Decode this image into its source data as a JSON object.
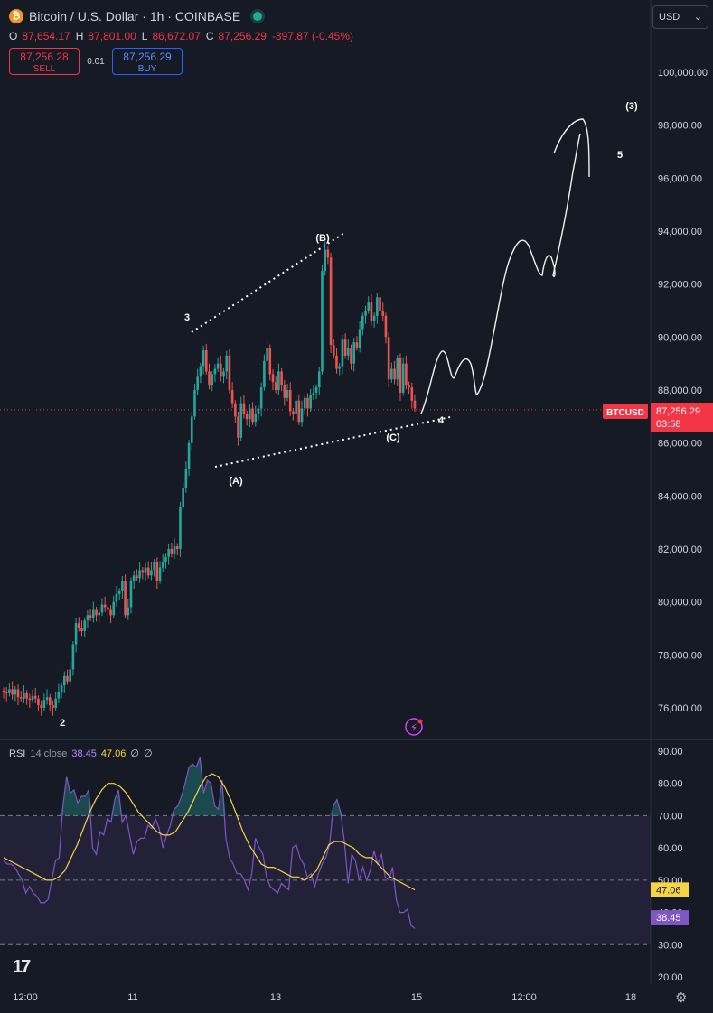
{
  "header": {
    "symbol": "Bitcoin / U.S. Dollar · 1h · COINBASE",
    "ohlc": {
      "o_label": "O",
      "o": "87,654.17",
      "h_label": "H",
      "h": "87,801.00",
      "l_label": "L",
      "l": "86,672.07",
      "c_label": "C",
      "c": "87,256.29",
      "change": "-397.87 (-0.45%)"
    },
    "sell_price": "87,256.28",
    "sell_label": "SELL",
    "buy_price": "87,256.29",
    "buy_label": "BUY",
    "spread": "0.01",
    "currency": "USD"
  },
  "price_tag": {
    "symbol": "BTCUSD",
    "price": "87,256.29",
    "countdown": "03:58"
  },
  "rsi_legend": {
    "name": "RSI",
    "params": "14 close",
    "rsi": "38.45",
    "ma": "47.06",
    "e1": "∅",
    "e2": "∅"
  },
  "colors": {
    "up": "#26a69a",
    "down": "#ef5350",
    "rsi": "#7e57c2",
    "rsi_ma": "#f5d547",
    "price_tag": "#f23645",
    "bg": "#161a25"
  },
  "icons": {
    "symbol": "bitcoin-icon",
    "live": "market-open-icon",
    "logo": "tradingview-logo-icon",
    "settings": "settings-icon",
    "flash": "lightning-icon"
  },
  "chart_data": [
    {
      "type": "candlestick",
      "title": "Bitcoin / U.S. Dollar · 1h · COINBASE",
      "ylim": [
        75000,
        101500
      ],
      "yticks": [
        "100,000.00",
        "98,000.00",
        "96,000.00",
        "94,000.00",
        "92,000.00",
        "90,000.00",
        "88,000.00",
        "86,000.00",
        "84,000.00",
        "82,000.00",
        "80,000.00",
        "78,000.00",
        "76,000.00"
      ],
      "xticks": [
        "12:00",
        "11",
        "13",
        "15",
        "12:00",
        "18"
      ],
      "last_price": 87256.29,
      "series": [
        {
          "name": "close",
          "values": [
            76600,
            76550,
            76700,
            76500,
            76700,
            76400,
            76350,
            76550,
            76350,
            76300,
            76450,
            76350,
            76100,
            76000,
            76300,
            76400,
            76100,
            76000,
            76350,
            76600,
            76850,
            77200,
            77000,
            77450,
            78400,
            79200,
            79000,
            78900,
            79300,
            79500,
            79400,
            79700,
            79500,
            79600,
            79900,
            79800,
            79700,
            79500,
            80000,
            80300,
            80400,
            80800,
            79500,
            79800,
            80800,
            81000,
            80900,
            81200,
            81100,
            81300,
            81000,
            81200,
            81500,
            80800,
            81300,
            81500,
            81700,
            82000,
            81800,
            82100,
            82000,
            83600,
            84300,
            85000,
            86000,
            87000,
            88000,
            88500,
            88900,
            89500,
            88700,
            88200,
            88600,
            88800,
            89000,
            88500,
            88700,
            89300,
            88000,
            87500,
            87000,
            86200,
            87500,
            87100,
            86900,
            87300,
            86800,
            87100,
            87300,
            88100,
            89100,
            89600,
            88600,
            88300,
            88000,
            88700,
            88200,
            87700,
            88000,
            87200,
            87100,
            87600,
            86800,
            87300,
            87700,
            87300,
            87800,
            87900,
            88100,
            88700,
            92500,
            93300,
            93000,
            89700,
            89300,
            88800,
            88900,
            89900,
            89300,
            89600,
            89000,
            89800,
            89600,
            90300,
            90800,
            91000,
            91300,
            90600,
            90800,
            91500,
            91000,
            90800,
            90000,
            88400,
            88800,
            88400,
            89200,
            87900,
            89000,
            88200,
            88100,
            87600,
            87300
          ]
        }
      ],
      "annotations": [
        {
          "label": "(B)",
          "x": "13-16:00",
          "y": 93900
        },
        {
          "label": "3",
          "x": "11-15:00",
          "y": 90700
        },
        {
          "label": "(A)",
          "x": "12-10:00",
          "y": 84600
        },
        {
          "label": "(C)",
          "x": "14-20:00",
          "y": 86250
        },
        {
          "label": "4",
          "x": "15-02:00",
          "y": 87000
        },
        {
          "label": "(3)",
          "x": "16-22:00",
          "y": 98700
        },
        {
          "label": "5",
          "x": "16-20:00",
          "y": 96900
        },
        {
          "label": "2",
          "x": "10-09:00",
          "y": 75400
        }
      ]
    },
    {
      "type": "line",
      "title": "RSI 14 close",
      "ylim": [
        20,
        90
      ],
      "yticks": [
        "90.00",
        "80.00",
        "70.00",
        "60.00",
        "50.00",
        "40.00",
        "30.00",
        "20.00"
      ],
      "bands": [
        30,
        50,
        70
      ],
      "series": [
        {
          "name": "RSI",
          "values": [
            56,
            55,
            55,
            54,
            52,
            50,
            46,
            48,
            46,
            45,
            43,
            43,
            44,
            50,
            56,
            57,
            73,
            82,
            77,
            78,
            74,
            76,
            76,
            78,
            60,
            58,
            65,
            64,
            69,
            68,
            75,
            78,
            68,
            70,
            64,
            58,
            62,
            63,
            63,
            67,
            66,
            69,
            66,
            60,
            64,
            67,
            72,
            73,
            76,
            80,
            85,
            86,
            85,
            88,
            77,
            81,
            80,
            73,
            72,
            81,
            63,
            57,
            55,
            52,
            52,
            50,
            47,
            52,
            63,
            60,
            58,
            51,
            48,
            47,
            46,
            49,
            48,
            47,
            60,
            61,
            57,
            55,
            51,
            52,
            48,
            52,
            55,
            57,
            61,
            73,
            75,
            71,
            62,
            49,
            58,
            56,
            50,
            54,
            50,
            53,
            59,
            55,
            58,
            51,
            50,
            54,
            44,
            40,
            40,
            41,
            36,
            35
          ]
        },
        {
          "name": "MA",
          "values": [
            57,
            56,
            55,
            54,
            53,
            52,
            51,
            50,
            50,
            51,
            53,
            57,
            61,
            66,
            71,
            75,
            78,
            80,
            80,
            79,
            77,
            74,
            71,
            69,
            67,
            65,
            64,
            64,
            65,
            68,
            71,
            75,
            79,
            82,
            83,
            82,
            79,
            75,
            70,
            65,
            61,
            58,
            55,
            54,
            54,
            53,
            52,
            51,
            51,
            50,
            51,
            53,
            57,
            61,
            62,
            62,
            61,
            60,
            58,
            57,
            57,
            55,
            53,
            51,
            50,
            49,
            48,
            47
          ]
        }
      ]
    }
  ]
}
